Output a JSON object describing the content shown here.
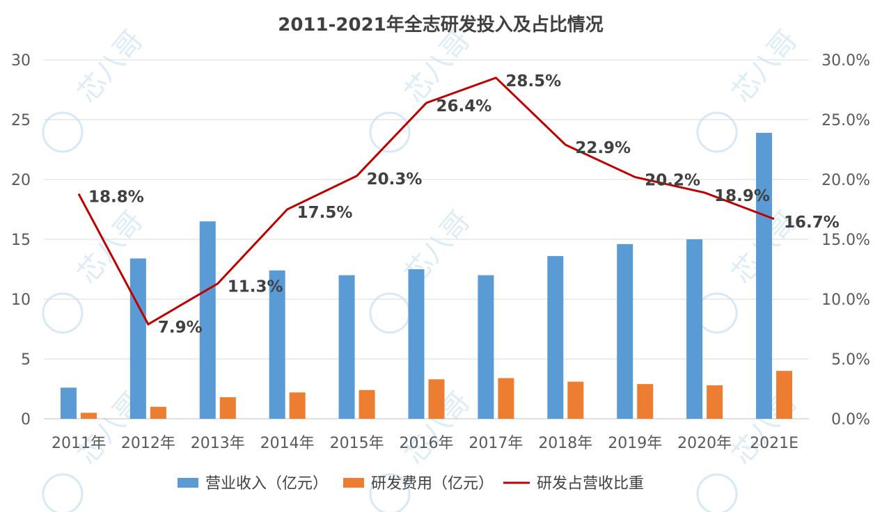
{
  "chart_data": {
    "type": "bar+line",
    "title": "2011-2021年全志研发投入及占比情况",
    "categories": [
      "2011年",
      "2012年",
      "2013年",
      "2014年",
      "2015年",
      "2016年",
      "2017年",
      "2018年",
      "2019年",
      "2020年",
      "2021E"
    ],
    "series": [
      {
        "name": "营业收入（亿元）",
        "type": "bar",
        "axis": "left",
        "color": "#5b9bd5",
        "values": [
          2.6,
          13.4,
          16.5,
          12.4,
          12.0,
          12.5,
          12.0,
          13.6,
          14.6,
          15.0,
          23.9
        ]
      },
      {
        "name": "研发费用（亿元）",
        "type": "bar",
        "axis": "left",
        "color": "#ed7d31",
        "values": [
          0.5,
          1.0,
          1.8,
          2.2,
          2.4,
          3.3,
          3.4,
          3.1,
          2.9,
          2.8,
          4.0
        ]
      },
      {
        "name": "研发占营收比重",
        "type": "line",
        "axis": "right",
        "color": "#c00000",
        "values": [
          18.8,
          7.9,
          11.3,
          17.5,
          20.3,
          26.4,
          28.5,
          22.9,
          20.2,
          18.9,
          16.7
        ],
        "labels": [
          "18.8%",
          "7.9%",
          "11.3%",
          "17.5%",
          "20.3%",
          "26.4%",
          "28.5%",
          "22.9%",
          "20.2%",
          "18.9%",
          "16.7%"
        ]
      }
    ],
    "left_axis": {
      "ylim": [
        0,
        30
      ],
      "ticks": [
        "0",
        "5",
        "10",
        "15",
        "20",
        "25",
        "30"
      ]
    },
    "right_axis": {
      "ylim": [
        0,
        30
      ],
      "ticks": [
        "0.0%",
        "5.0%",
        "10.0%",
        "15.0%",
        "20.0%",
        "25.0%",
        "30.0%"
      ]
    },
    "grid": true,
    "legend_position": "bottom"
  },
  "watermark": "芯八哥"
}
